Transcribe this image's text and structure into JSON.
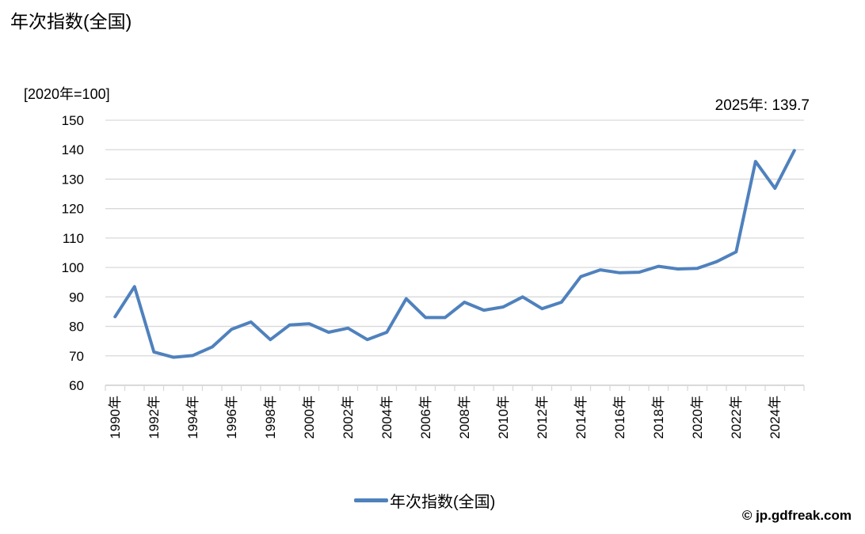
{
  "chart": {
    "title": "年次指数(全国)",
    "unit_label": "[2020年=100]",
    "annotation": "2025年: 139.7",
    "legend_label": "年次指数(全国)",
    "watermark": "© jp.gdfreak.com"
  },
  "chart_data": {
    "type": "line",
    "title": "年次指数(全国)",
    "subtitle": "[2020年=100]",
    "annotation": "2025年: 139.7",
    "series": [
      {
        "name": "年次指数(全国)",
        "x": [
          1990,
          1991,
          1992,
          1993,
          1994,
          1995,
          1996,
          1997,
          1998,
          1999,
          2000,
          2001,
          2002,
          2003,
          2004,
          2005,
          2006,
          2007,
          2008,
          2009,
          2010,
          2011,
          2012,
          2013,
          2014,
          2015,
          2016,
          2017,
          2018,
          2019,
          2020,
          2021,
          2022,
          2023,
          2024,
          2025
        ],
        "values": [
          83.3,
          93.5,
          71.3,
          69.5,
          70.1,
          73.0,
          79.0,
          81.5,
          75.5,
          80.5,
          80.9,
          78.0,
          79.4,
          75.5,
          78.0,
          89.4,
          83.0,
          83.0,
          88.2,
          85.5,
          86.6,
          90.0,
          86.0,
          88.2,
          96.9,
          99.2,
          98.2,
          98.4,
          100.4,
          99.5,
          99.7,
          102.0,
          105.3,
          136.0,
          126.9,
          139.7
        ]
      }
    ],
    "ylim": [
      60,
      150
    ],
    "yticks": [
      60,
      70,
      80,
      90,
      100,
      110,
      120,
      130,
      140,
      150
    ],
    "y_tick_labels": [
      "60",
      "70",
      "80",
      "90",
      "100",
      "110",
      "120",
      "130",
      "140",
      "150"
    ],
    "x_tick_labels": [
      "1990年",
      "1992年",
      "1994年",
      "1996年",
      "1998年",
      "2000年",
      "2002年",
      "2004年",
      "2006年",
      "2008年",
      "2010年",
      "2012年",
      "2014年",
      "2016年",
      "2018年",
      "2020年",
      "2022年",
      "2024年"
    ],
    "x_label_rotation": -90,
    "grid": true,
    "legend_position": "bottom",
    "colors": {
      "line": "#4F81BD",
      "grid": "#D9D9D9",
      "axis": "#D9D9D9",
      "text": "#000000",
      "background": "#FFFFFF"
    }
  }
}
